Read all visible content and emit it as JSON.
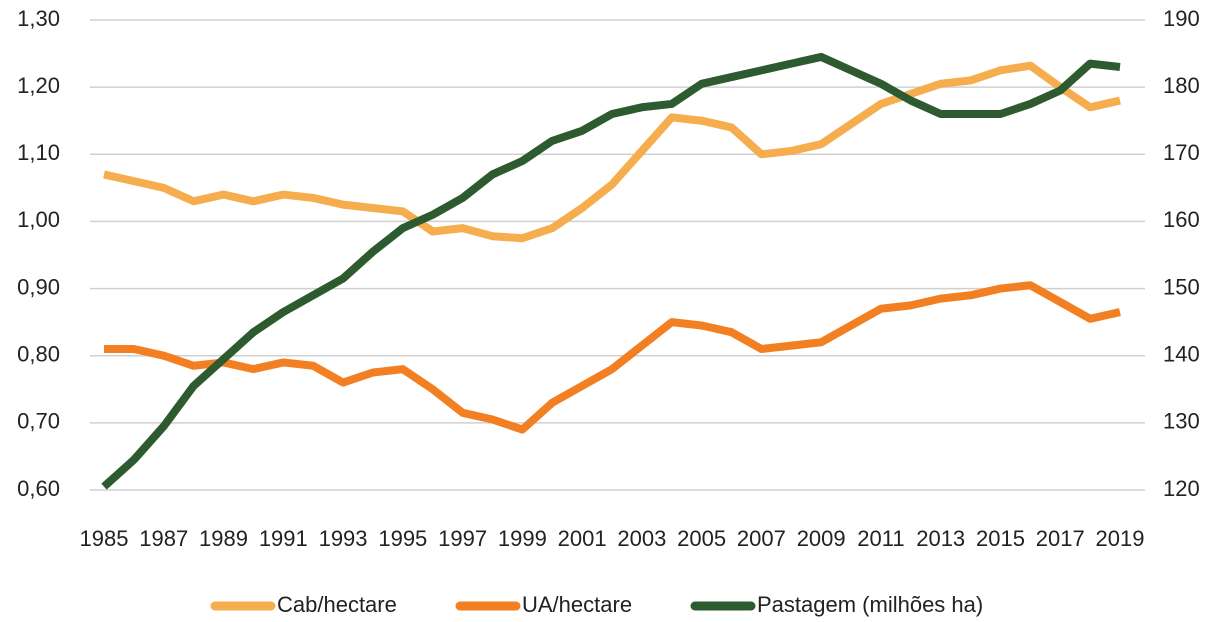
{
  "chart_data": {
    "type": "line",
    "x": [
      1985,
      1986,
      1987,
      1988,
      1989,
      1990,
      1991,
      1992,
      1993,
      1994,
      1995,
      1996,
      1997,
      1998,
      1999,
      2000,
      2001,
      2002,
      2003,
      2004,
      2005,
      2006,
      2007,
      2008,
      2009,
      2010,
      2011,
      2012,
      2013,
      2014,
      2015,
      2016,
      2017,
      2018,
      2019
    ],
    "xlim": [
      1985,
      2019
    ],
    "xticks": [
      1985,
      1987,
      1989,
      1991,
      1993,
      1995,
      1997,
      1999,
      2001,
      2003,
      2005,
      2007,
      2009,
      2011,
      2013,
      2015,
      2017,
      2019
    ],
    "ylim": [
      0.6,
      1.3
    ],
    "yticks": [
      {
        "value": 0.6,
        "label": "0,60"
      },
      {
        "value": 0.7,
        "label": "0,70"
      },
      {
        "value": 0.8,
        "label": "0,80"
      },
      {
        "value": 0.9,
        "label": "0,90"
      },
      {
        "value": 1.0,
        "label": "1,00"
      },
      {
        "value": 1.1,
        "label": "1,10"
      },
      {
        "value": 1.2,
        "label": "1,20"
      },
      {
        "value": 1.3,
        "label": "1,30"
      }
    ],
    "y2lim": [
      120,
      190
    ],
    "y2ticks": [
      120,
      130,
      140,
      150,
      160,
      170,
      180,
      190
    ],
    "grid": true,
    "legend": "bottom",
    "series": [
      {
        "name": "Cab/hectare",
        "color": "#f5ad4e",
        "values": [
          1.07,
          1.06,
          1.05,
          1.03,
          1.04,
          1.03,
          1.04,
          1.035,
          1.025,
          1.02,
          1.015,
          0.985,
          0.99,
          0.978,
          0.975,
          0.99,
          1.02,
          1.055,
          1.105,
          1.155,
          1.15,
          1.14,
          1.1,
          1.105,
          1.115,
          1.145,
          1.175,
          1.19,
          1.205,
          1.21,
          1.225,
          1.232,
          1.2,
          1.17,
          1.18
        ]
      },
      {
        "name": "UA/hectare",
        "color": "#f28023",
        "values": [
          0.81,
          0.81,
          0.8,
          0.785,
          0.79,
          0.78,
          0.79,
          0.785,
          0.76,
          0.775,
          0.78,
          0.75,
          0.715,
          0.705,
          0.69,
          0.73,
          0.755,
          0.78,
          0.815,
          0.85,
          0.845,
          0.835,
          0.81,
          0.815,
          0.82,
          0.845,
          0.87,
          0.875,
          0.885,
          0.89,
          0.9,
          0.905,
          0.88,
          0.855,
          0.865
        ]
      },
      {
        "name": "Pastagem (milhões ha)",
        "color": "#2d5a2e",
        "axis": "y2",
        "values": [
          120.5,
          124.5,
          129.5,
          135.5,
          139.5,
          143.5,
          146.5,
          149,
          151.5,
          155.5,
          159,
          161,
          163.5,
          167,
          169,
          172,
          173.5,
          176,
          177,
          177.5,
          180.5,
          181.5,
          182.5,
          183.5,
          184.5,
          182.5,
          180.5,
          178,
          176,
          176,
          176,
          177.5,
          179.5,
          183.5,
          183
        ]
      }
    ]
  }
}
